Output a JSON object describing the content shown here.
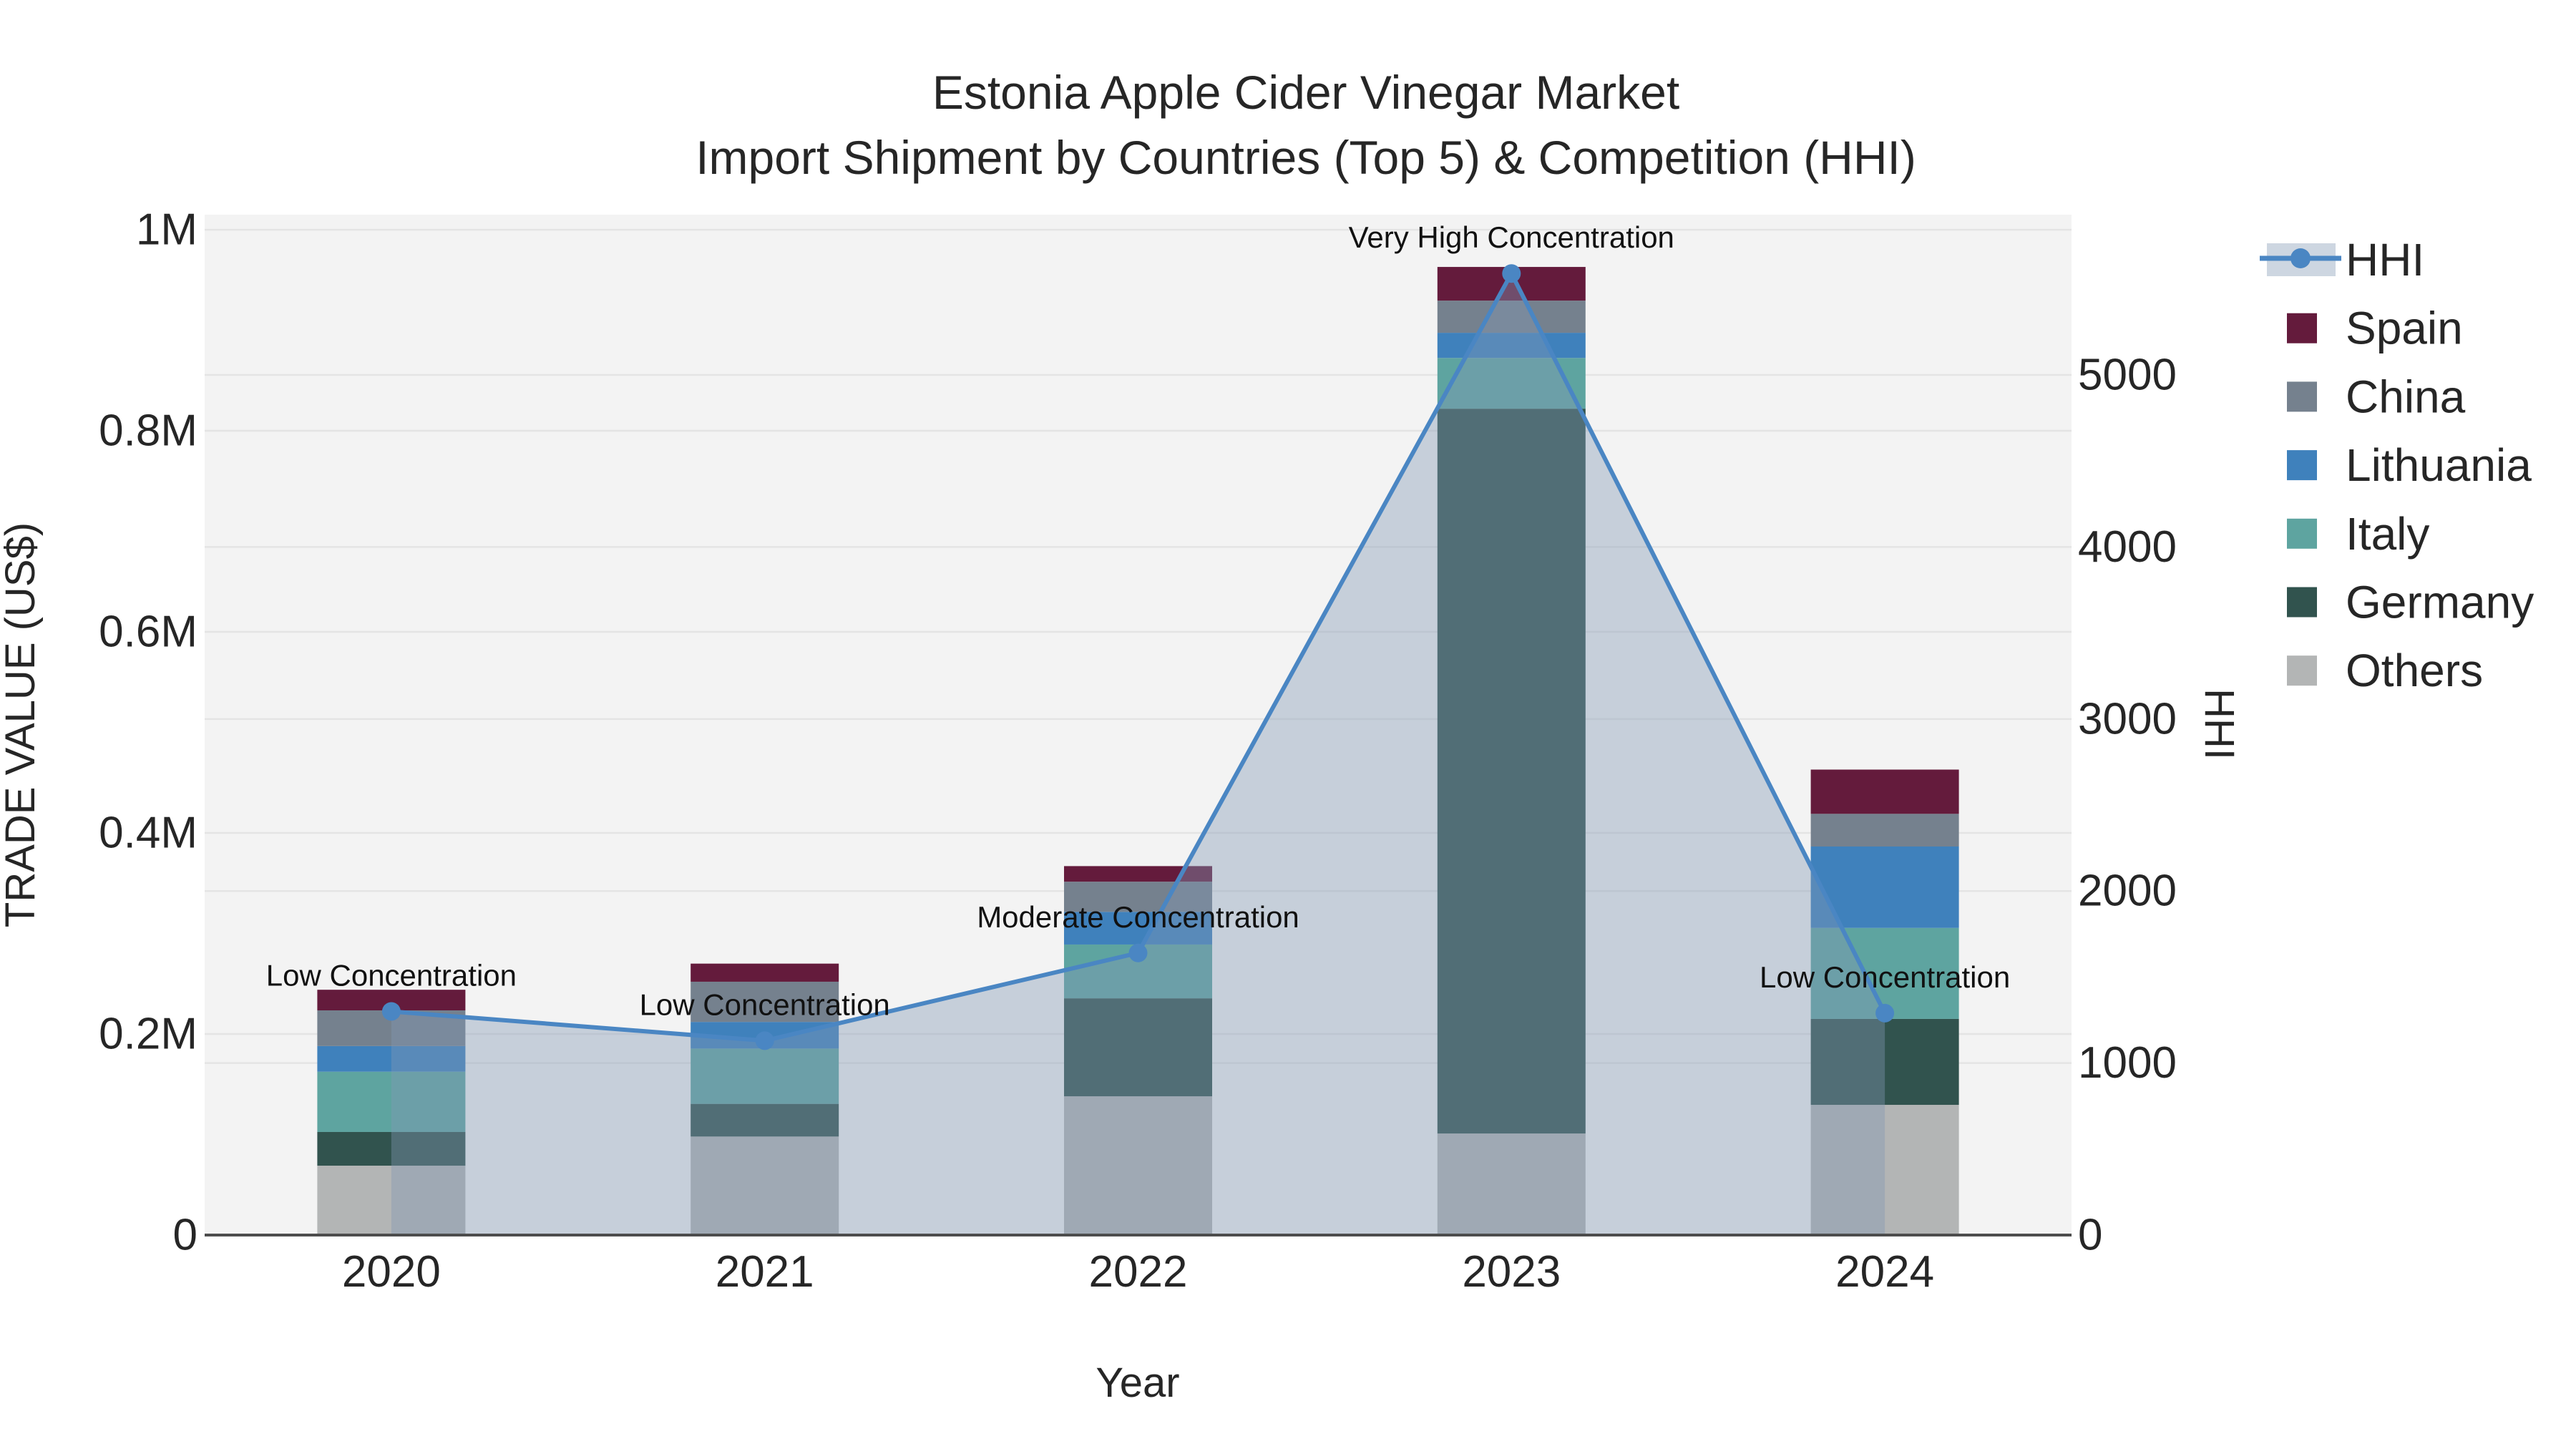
{
  "title": {
    "line1": "Estonia Apple Cider Vinegar Market",
    "line2": "Import Shipment by Countries (Top 5) & Competition (HHI)"
  },
  "chart_data": {
    "type": "combo",
    "subtypes": [
      "stacked-bar",
      "line-area"
    ],
    "title": "Estonia Apple Cider Vinegar Market\nImport Shipment by Countries (Top 5) & Competition (HHI)",
    "categories": [
      "2020",
      "2021",
      "2022",
      "2023",
      "2024"
    ],
    "series": [
      {
        "name": "Spain",
        "color": "#641B3C",
        "values": [
          20500,
          18000,
          15500,
          33500,
          44000
        ]
      },
      {
        "name": "China",
        "color": "#75818E",
        "values": [
          35500,
          40000,
          30000,
          32000,
          32500
        ]
      },
      {
        "name": "Lithuania",
        "color": "#3F81BC",
        "values": [
          25500,
          26500,
          32500,
          25000,
          81000
        ]
      },
      {
        "name": "Italy",
        "color": "#5EA4A0",
        "values": [
          60000,
          55000,
          53500,
          50500,
          90500
        ]
      },
      {
        "name": "Germany",
        "color": "#31534E",
        "values": [
          33500,
          32500,
          97500,
          721000,
          85500
        ]
      },
      {
        "name": "Others",
        "color": "#B3B5B5",
        "values": [
          69000,
          98000,
          138000,
          101000,
          129500
        ]
      }
    ],
    "stack_totals": [
      244000,
      270000,
      367000,
      963000,
      463000
    ],
    "line_series": {
      "name": "HHI",
      "axis": "right",
      "color": "#4A86C3",
      "fill_color": "rgba(130,152,180,0.40)",
      "values": [
        1300,
        1130,
        1640,
        5590,
        1290
      ]
    },
    "annotations": [
      {
        "category": "2020",
        "text": "Low Concentration"
      },
      {
        "category": "2021",
        "text": "Low Concentration"
      },
      {
        "category": "2022",
        "text": "Moderate Concentration"
      },
      {
        "category": "2023",
        "text": "Very High Concentration"
      },
      {
        "category": "2024",
        "text": "Low Concentration"
      }
    ],
    "axis_left": {
      "title": "TRADE VALUE (US$)",
      "tick_values": [
        0,
        200000,
        400000,
        600000,
        800000,
        1000000
      ],
      "tick_labels": [
        "0",
        "0.2M",
        "0.4M",
        "0.6M",
        "0.8M",
        "1M"
      ],
      "range": [
        0,
        1015000
      ]
    },
    "axis_right": {
      "title": "HHI",
      "tick_values": [
        0,
        1000,
        2000,
        3000,
        4000,
        5000
      ],
      "tick_labels": [
        "0",
        "1000",
        "2000",
        "3000",
        "4000",
        "5000"
      ],
      "range": [
        0,
        5932
      ]
    },
    "x_axis": {
      "title": "Year"
    },
    "legend": {
      "items": [
        "HHI",
        "Spain",
        "China",
        "Lithuania",
        "Italy",
        "Germany",
        "Others"
      ],
      "position": "right"
    },
    "layout_hints": {
      "grid": true,
      "plot_background": "#F3F3F3",
      "paper_background": "#FFFFFF",
      "grid_color": "#E4E4E4",
      "axis_line_color": "#4D4D4D"
    }
  }
}
